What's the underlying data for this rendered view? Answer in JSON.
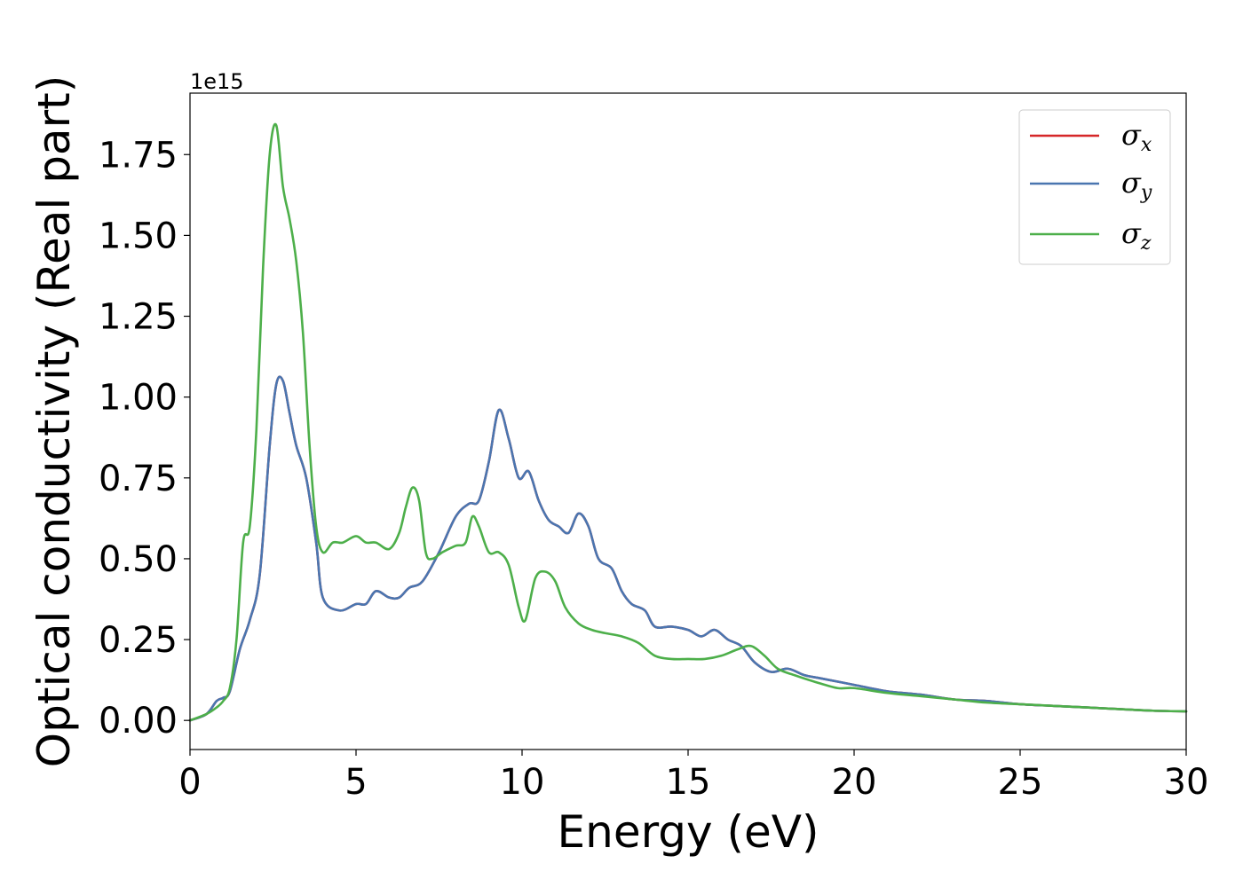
{
  "chart_data": {
    "type": "line",
    "title": "",
    "xlabel": "Energy (eV)",
    "ylabel": "Optical conductivity (Real part)",
    "y_offset_label": "1e15",
    "xlim": [
      0,
      30
    ],
    "ylim": [
      -0.09,
      1.94
    ],
    "x_ticks": [
      0,
      5,
      10,
      15,
      20,
      25,
      30
    ],
    "x_tick_labels": [
      "0",
      "5",
      "10",
      "15",
      "20",
      "25",
      "30"
    ],
    "y_ticks": [
      0.0,
      0.25,
      0.5,
      0.75,
      1.0,
      1.25,
      1.5,
      1.75
    ],
    "y_tick_labels": [
      "0.00",
      "0.25",
      "0.50",
      "0.75",
      "1.00",
      "1.25",
      "1.50",
      "1.75"
    ],
    "grid": false,
    "legend_position": "top-right",
    "series": [
      {
        "name": "σx",
        "legend_base": "σ",
        "legend_sub": "x",
        "color": "#d62728",
        "x": [
          0,
          0.5,
          0.8,
          1.0,
          1.2,
          1.5,
          1.8,
          2.1,
          2.4,
          2.6,
          2.8,
          3.0,
          3.2,
          3.5,
          3.8,
          4.0,
          4.5,
          5.0,
          5.3,
          5.6,
          6.0,
          6.3,
          6.6,
          7.0,
          7.5,
          8.0,
          8.4,
          8.7,
          9.0,
          9.3,
          9.6,
          9.9,
          10.2,
          10.5,
          10.8,
          11.1,
          11.4,
          11.7,
          12.0,
          12.3,
          12.7,
          13.0,
          13.3,
          13.7,
          14.0,
          14.5,
          15.0,
          15.4,
          15.8,
          16.2,
          16.6,
          17.0,
          17.5,
          18.0,
          18.5,
          19.0,
          20.0,
          21.0,
          22.0,
          23.0,
          24.0,
          25.0,
          26.0,
          27.0,
          28.0,
          29.0,
          30.0
        ],
        "values": [
          0.0,
          0.02,
          0.06,
          0.07,
          0.09,
          0.22,
          0.31,
          0.45,
          0.85,
          1.04,
          1.05,
          0.95,
          0.85,
          0.75,
          0.55,
          0.38,
          0.34,
          0.36,
          0.36,
          0.4,
          0.38,
          0.38,
          0.41,
          0.43,
          0.52,
          0.63,
          0.67,
          0.68,
          0.8,
          0.96,
          0.87,
          0.75,
          0.77,
          0.68,
          0.62,
          0.6,
          0.58,
          0.64,
          0.6,
          0.5,
          0.47,
          0.4,
          0.36,
          0.34,
          0.29,
          0.29,
          0.28,
          0.26,
          0.28,
          0.25,
          0.23,
          0.18,
          0.15,
          0.16,
          0.14,
          0.13,
          0.11,
          0.09,
          0.08,
          0.065,
          0.06,
          0.05,
          0.045,
          0.04,
          0.035,
          0.03,
          0.028
        ]
      },
      {
        "name": "σy",
        "legend_base": "σ",
        "legend_sub": "y",
        "color": "#4a76b0",
        "x": [
          0,
          0.5,
          0.8,
          1.0,
          1.2,
          1.5,
          1.8,
          2.1,
          2.4,
          2.6,
          2.8,
          3.0,
          3.2,
          3.5,
          3.8,
          4.0,
          4.5,
          5.0,
          5.3,
          5.6,
          6.0,
          6.3,
          6.6,
          7.0,
          7.5,
          8.0,
          8.4,
          8.7,
          9.0,
          9.3,
          9.6,
          9.9,
          10.2,
          10.5,
          10.8,
          11.1,
          11.4,
          11.7,
          12.0,
          12.3,
          12.7,
          13.0,
          13.3,
          13.7,
          14.0,
          14.5,
          15.0,
          15.4,
          15.8,
          16.2,
          16.6,
          17.0,
          17.5,
          18.0,
          18.5,
          19.0,
          20.0,
          21.0,
          22.0,
          23.0,
          24.0,
          25.0,
          26.0,
          27.0,
          28.0,
          29.0,
          30.0
        ],
        "values": [
          0.0,
          0.02,
          0.06,
          0.07,
          0.09,
          0.22,
          0.31,
          0.45,
          0.85,
          1.04,
          1.05,
          0.95,
          0.85,
          0.75,
          0.55,
          0.38,
          0.34,
          0.36,
          0.36,
          0.4,
          0.38,
          0.38,
          0.41,
          0.43,
          0.52,
          0.63,
          0.67,
          0.68,
          0.8,
          0.96,
          0.87,
          0.75,
          0.77,
          0.68,
          0.62,
          0.6,
          0.58,
          0.64,
          0.6,
          0.5,
          0.47,
          0.4,
          0.36,
          0.34,
          0.29,
          0.29,
          0.28,
          0.26,
          0.28,
          0.25,
          0.23,
          0.18,
          0.15,
          0.16,
          0.14,
          0.13,
          0.11,
          0.09,
          0.08,
          0.065,
          0.06,
          0.05,
          0.045,
          0.04,
          0.035,
          0.03,
          0.028
        ]
      },
      {
        "name": "σz",
        "legend_base": "σ",
        "legend_sub": "z",
        "color": "#4daf4a",
        "x": [
          0,
          0.5,
          0.8,
          1.0,
          1.2,
          1.4,
          1.6,
          1.8,
          2.0,
          2.2,
          2.4,
          2.6,
          2.8,
          3.0,
          3.2,
          3.4,
          3.6,
          3.8,
          4.0,
          4.3,
          4.6,
          5.0,
          5.3,
          5.6,
          6.0,
          6.3,
          6.5,
          6.7,
          6.9,
          7.1,
          7.3,
          7.6,
          8.0,
          8.3,
          8.5,
          8.7,
          9.0,
          9.3,
          9.6,
          9.9,
          10.1,
          10.4,
          10.7,
          11.0,
          11.3,
          11.7,
          12.1,
          12.5,
          13.0,
          13.5,
          14.0,
          14.5,
          15.0,
          15.5,
          16.0,
          16.5,
          16.9,
          17.3,
          17.7,
          18.2,
          18.8,
          19.5,
          20.0,
          21.0,
          22.0,
          23.0,
          24.0,
          25.0,
          26.0,
          27.0,
          28.0,
          29.0,
          30.0
        ],
        "values": [
          0.0,
          0.02,
          0.04,
          0.06,
          0.1,
          0.25,
          0.55,
          0.6,
          0.9,
          1.4,
          1.75,
          1.84,
          1.65,
          1.55,
          1.42,
          1.2,
          0.85,
          0.6,
          0.52,
          0.55,
          0.55,
          0.57,
          0.55,
          0.55,
          0.53,
          0.58,
          0.66,
          0.72,
          0.68,
          0.52,
          0.5,
          0.52,
          0.54,
          0.55,
          0.63,
          0.6,
          0.52,
          0.52,
          0.48,
          0.35,
          0.31,
          0.44,
          0.46,
          0.43,
          0.35,
          0.3,
          0.28,
          0.27,
          0.26,
          0.24,
          0.2,
          0.19,
          0.19,
          0.19,
          0.2,
          0.22,
          0.23,
          0.2,
          0.16,
          0.14,
          0.12,
          0.1,
          0.1,
          0.085,
          0.075,
          0.065,
          0.055,
          0.05,
          0.045,
          0.04,
          0.035,
          0.03,
          0.028
        ]
      }
    ]
  }
}
